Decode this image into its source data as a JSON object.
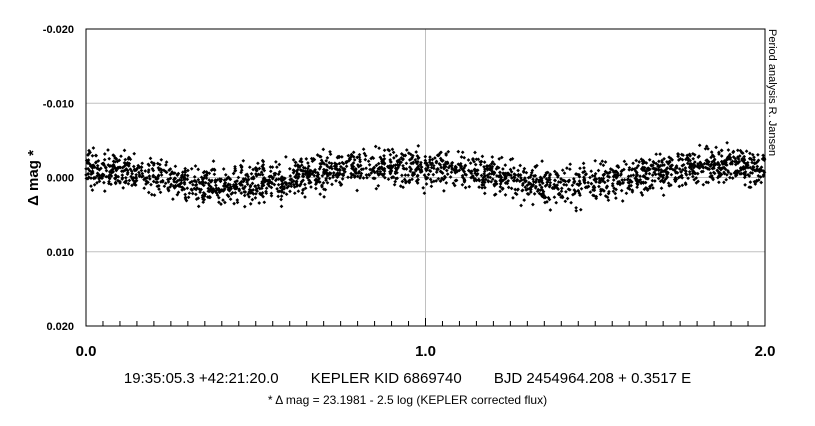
{
  "chart_data": {
    "type": "scatter",
    "title": "",
    "xlabel": "",
    "ylabel": "Δ mag *",
    "xlim": [
      0.0,
      2.0
    ],
    "ylim": [
      -0.02,
      0.02
    ],
    "y_inverted": true,
    "x_ticks": [
      "0.0",
      "1.0",
      "2.0"
    ],
    "y_ticks": [
      "-0.020",
      "-0.010",
      "0.000",
      "0.010",
      "0.020"
    ],
    "x_tick_values": [
      0.0,
      1.0,
      2.0
    ],
    "y_tick_values": [
      -0.02,
      -0.01,
      0.0,
      0.01,
      0.02
    ],
    "grid": true,
    "marker_color": "#000000",
    "grid_color": "#c0c0c0",
    "series": [
      {
        "values_description": "folded light curve over two cycles",
        "x": [
          0.0,
          0.05,
          0.1,
          0.15,
          0.2,
          0.25,
          0.3,
          0.35,
          0.4,
          0.45,
          0.5,
          0.55,
          0.6,
          0.65,
          0.7,
          0.75,
          0.8,
          0.85,
          0.9,
          0.95,
          1.0,
          1.05,
          1.1,
          1.15,
          1.2,
          1.25,
          1.3,
          1.35,
          1.4,
          1.45,
          1.5,
          1.55,
          1.6,
          1.65,
          1.7,
          1.75,
          1.8,
          1.85,
          1.9,
          1.95,
          2.0
        ],
        "y_mean": [
          -0.001,
          -0.0012,
          -0.001,
          -0.0006,
          -0.0002,
          0.0002,
          0.0006,
          0.0009,
          0.001,
          0.001,
          0.0008,
          0.0005,
          0.0002,
          -0.0002,
          -0.0006,
          -0.001,
          -0.0013,
          -0.0015,
          -0.0016,
          -0.0015,
          -0.0013,
          -0.0012,
          -0.001,
          -0.0006,
          -0.0002,
          0.0002,
          0.0006,
          0.0009,
          0.001,
          0.001,
          0.0008,
          0.0005,
          0.0002,
          -0.0002,
          -0.0006,
          -0.001,
          -0.0013,
          -0.0015,
          -0.0016,
          -0.0015,
          -0.0013
        ],
        "scatter_amplitude": 0.0022,
        "point_count_per_cycle": 1100
      }
    ]
  },
  "side_note": "Period analysis   R. Jansen",
  "info": {
    "coords": "19:35:05.3 +42:21:20.0",
    "kid": "KEPLER KID 6869740",
    "ephemeris": "BJD 2454964.208 + 0.3517 E",
    "formula": "* Δ mag = 23.1981 - 2.5 log (KEPLER corrected flux)"
  }
}
